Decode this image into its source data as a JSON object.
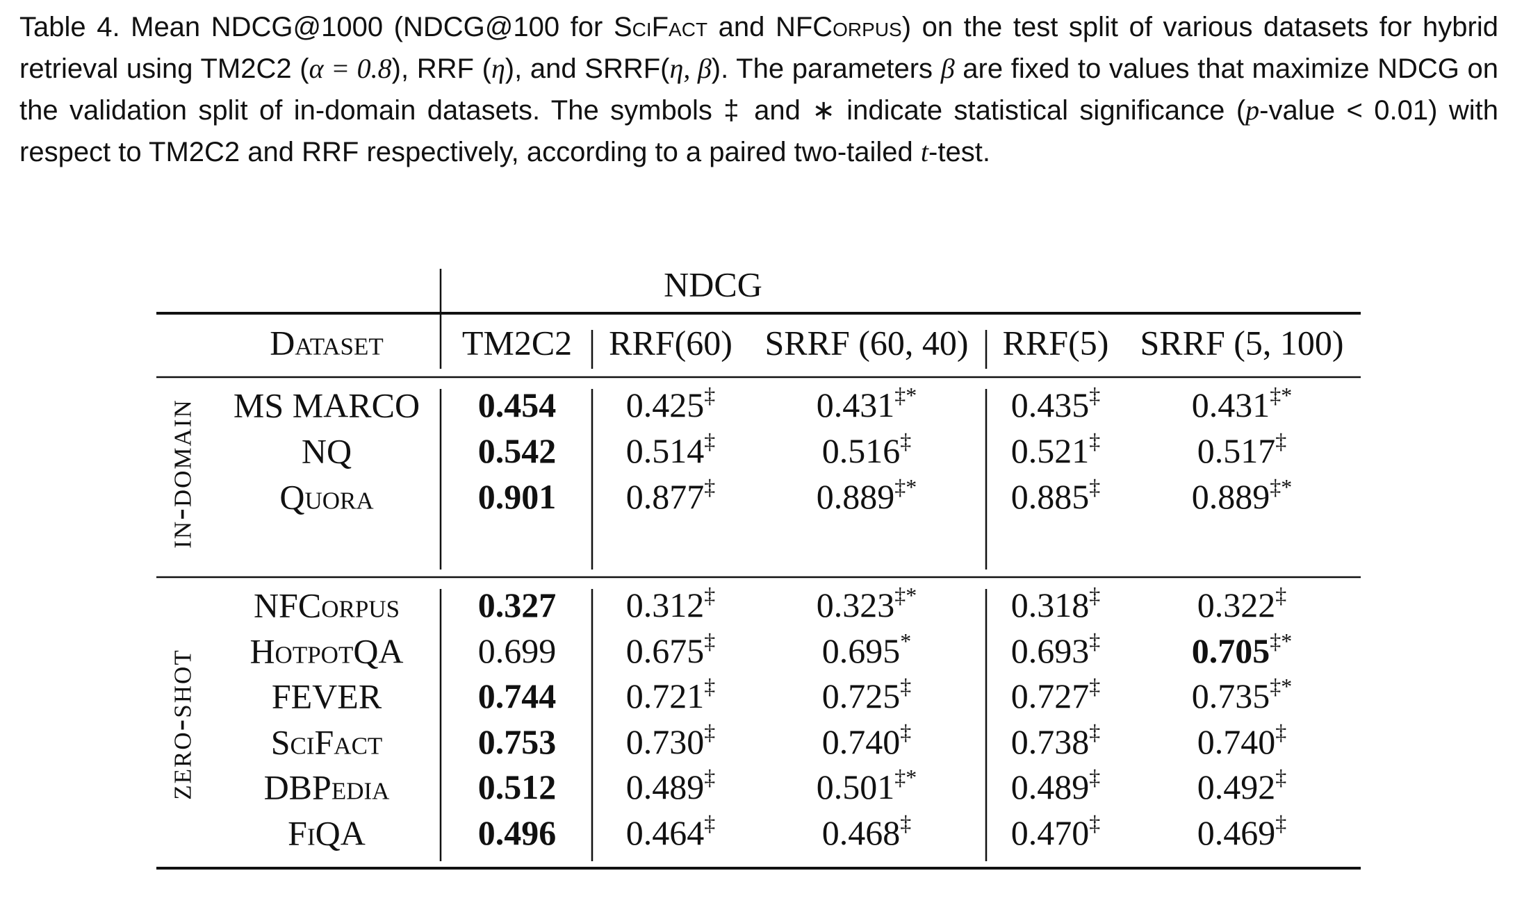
{
  "caption": [
    {
      "text": "Table 4.  Mean NDCG@1000 (NDCG@100 for ",
      "style": "plain"
    },
    {
      "text": "SciFact",
      "style": "sc"
    },
    {
      "text": " and ",
      "style": "plain"
    },
    {
      "text": "NFCorpus",
      "style": "sc"
    },
    {
      "text": ") on the test split of various datasets for hybrid retrieval using TM2C2 (",
      "style": "plain"
    },
    {
      "text": "α = 0.8",
      "style": "math"
    },
    {
      "text": "), RRF (",
      "style": "plain"
    },
    {
      "text": "η",
      "style": "it"
    },
    {
      "text": "), and SRRF(",
      "style": "plain"
    },
    {
      "text": "η, β",
      "style": "it"
    },
    {
      "text": "). The parameters ",
      "style": "plain"
    },
    {
      "text": "β",
      "style": "it"
    },
    {
      "text": " are fixed to values that maximize NDCG on the validation split of in-domain datasets. The symbols ‡ and ∗ indicate statistical significance (",
      "style": "plain"
    },
    {
      "text": "p",
      "style": "it"
    },
    {
      "text": "-value < 0.01) with respect to TM2C2 and RRF respectively, according to a paired two-tailed ",
      "style": "plain"
    },
    {
      "text": "t",
      "style": "it"
    },
    {
      "text": "-test.",
      "style": "plain"
    }
  ],
  "table": {
    "group_header": "NDCG",
    "columns": [
      "Dataset",
      "TM2C2",
      "RRF(60)",
      "SRRF (60, 40)",
      "RRF(5)",
      "SRRF (5, 100)"
    ],
    "groups": [
      {
        "label": "in-domain",
        "rows": [
          {
            "dataset": "MS MARCO",
            "cells": [
              {
                "text": "0.454",
                "bold": true
              },
              {
                "text": "0.425",
                "sup": "‡"
              },
              {
                "text": "0.431",
                "sup": "‡*"
              },
              {
                "text": "0.435",
                "sup": "‡"
              },
              {
                "text": "0.431",
                "sup": "‡*"
              }
            ]
          },
          {
            "dataset": "NQ",
            "cells": [
              {
                "text": "0.542",
                "bold": true
              },
              {
                "text": "0.514",
                "sup": "‡"
              },
              {
                "text": "0.516",
                "sup": "‡"
              },
              {
                "text": "0.521",
                "sup": "‡"
              },
              {
                "text": "0.517",
                "sup": "‡"
              }
            ]
          },
          {
            "dataset": "Quora",
            "cells": [
              {
                "text": "0.901",
                "bold": true
              },
              {
                "text": "0.877",
                "sup": "‡"
              },
              {
                "text": "0.889",
                "sup": "‡*"
              },
              {
                "text": "0.885",
                "sup": "‡"
              },
              {
                "text": "0.889",
                "sup": "‡*"
              }
            ]
          }
        ]
      },
      {
        "label": "zero-shot",
        "rows": [
          {
            "dataset": "NFCorpus",
            "cells": [
              {
                "text": "0.327",
                "bold": true
              },
              {
                "text": "0.312",
                "sup": "‡"
              },
              {
                "text": "0.323",
                "sup": "‡*"
              },
              {
                "text": "0.318",
                "sup": "‡"
              },
              {
                "text": "0.322",
                "sup": "‡"
              }
            ]
          },
          {
            "dataset": "HotpotQA",
            "cells": [
              {
                "text": "0.699"
              },
              {
                "text": "0.675",
                "sup": "‡"
              },
              {
                "text": "0.695",
                "sup": "*"
              },
              {
                "text": "0.693",
                "sup": "‡"
              },
              {
                "text": "0.705",
                "sup": "‡*",
                "bold": true
              }
            ]
          },
          {
            "dataset": "FEVER",
            "cells": [
              {
                "text": "0.744",
                "bold": true
              },
              {
                "text": "0.721",
                "sup": "‡"
              },
              {
                "text": "0.725",
                "sup": "‡"
              },
              {
                "text": "0.727",
                "sup": "‡"
              },
              {
                "text": "0.735",
                "sup": "‡*"
              }
            ]
          },
          {
            "dataset": "SciFact",
            "cells": [
              {
                "text": "0.753",
                "bold": true
              },
              {
                "text": "0.730",
                "sup": "‡"
              },
              {
                "text": "0.740",
                "sup": "‡"
              },
              {
                "text": "0.738",
                "sup": "‡"
              },
              {
                "text": "0.740",
                "sup": "‡"
              }
            ]
          },
          {
            "dataset": "DBPedia",
            "cells": [
              {
                "text": "0.512",
                "bold": true
              },
              {
                "text": "0.489",
                "sup": "‡"
              },
              {
                "text": "0.501",
                "sup": "‡*"
              },
              {
                "text": "0.489",
                "sup": "‡"
              },
              {
                "text": "0.492",
                "sup": "‡"
              }
            ]
          },
          {
            "dataset": "FiQA",
            "cells": [
              {
                "text": "0.496",
                "bold": true
              },
              {
                "text": "0.464",
                "sup": "‡"
              },
              {
                "text": "0.468",
                "sup": "‡"
              },
              {
                "text": "0.470",
                "sup": "‡"
              },
              {
                "text": "0.469",
                "sup": "‡"
              }
            ]
          }
        ]
      }
    ]
  }
}
